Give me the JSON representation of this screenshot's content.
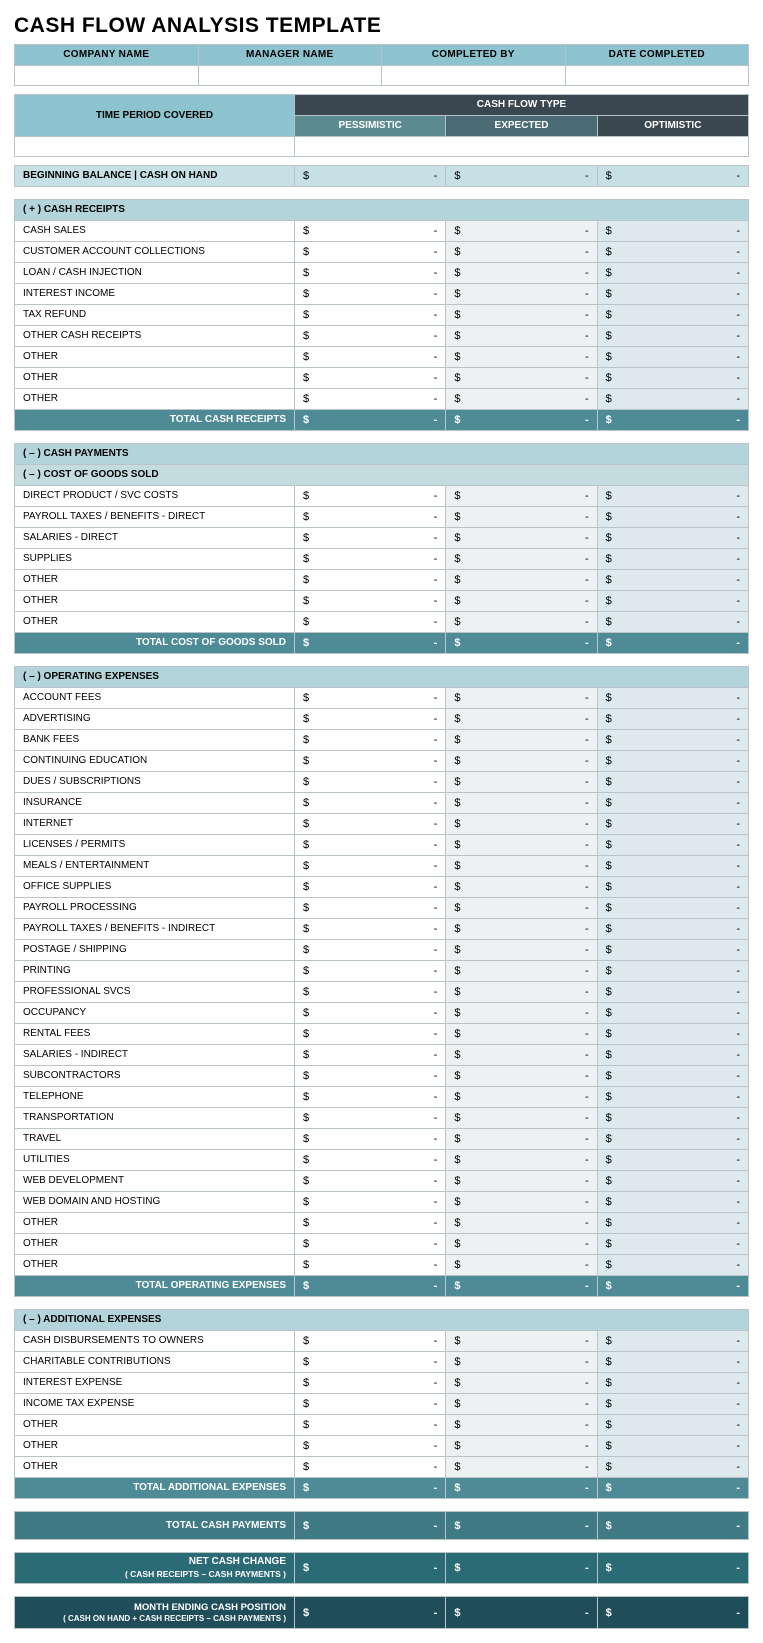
{
  "title": "CASH FLOW ANALYSIS TEMPLATE",
  "topHeaders": [
    "COMPANY NAME",
    "MANAGER NAME",
    "COMPLETED BY",
    "DATE COMPLETED"
  ],
  "timePeriodLabel": "TIME PERIOD COVERED",
  "cashFlowTypeLabel": "CASH FLOW TYPE",
  "scenarios": {
    "p": "PESSIMISTIC",
    "e": "EXPECTED",
    "o": "OPTIMISTIC"
  },
  "beginningLabel": "BEGINNING BALANCE  |  CASH ON HAND",
  "currencySymbol": "$",
  "dash": "-",
  "sections": {
    "receipts": {
      "header": "(  +  )   CASH RECEIPTS",
      "items": [
        "CASH SALES",
        "CUSTOMER ACCOUNT COLLECTIONS",
        "LOAN / CASH INJECTION",
        "INTEREST INCOME",
        "TAX REFUND",
        "OTHER CASH RECEIPTS",
        "OTHER",
        "OTHER",
        "OTHER"
      ],
      "total": "TOTAL CASH RECEIPTS"
    },
    "payments": {
      "header": "(  –  )   CASH PAYMENTS"
    },
    "cogs": {
      "header": "(  –  )   COST OF GOODS SOLD",
      "items": [
        "DIRECT PRODUCT / SVC COSTS",
        "PAYROLL TAXES / BENEFITS - DIRECT",
        "SALARIES - DIRECT",
        "SUPPLIES",
        "OTHER",
        "OTHER",
        "OTHER"
      ],
      "total": "TOTAL COST OF GOODS SOLD"
    },
    "opex": {
      "header": "(  –  )   OPERATING EXPENSES",
      "items": [
        "ACCOUNT FEES",
        "ADVERTISING",
        "BANK FEES",
        "CONTINUING EDUCATION",
        "DUES / SUBSCRIPTIONS",
        "INSURANCE",
        "INTERNET",
        "LICENSES / PERMITS",
        "MEALS / ENTERTAINMENT",
        "OFFICE SUPPLIES",
        "PAYROLL PROCESSING",
        "PAYROLL TAXES / BENEFITS - INDIRECT",
        "POSTAGE / SHIPPING",
        "PRINTING",
        "PROFESSIONAL SVCS",
        "OCCUPANCY",
        "RENTAL FEES",
        "SALARIES - INDIRECT",
        "SUBCONTRACTORS",
        "TELEPHONE",
        "TRANSPORTATION",
        "TRAVEL",
        "UTILITIES",
        "WEB DEVELOPMENT",
        "WEB DOMAIN AND HOSTING",
        "OTHER",
        "OTHER",
        "OTHER"
      ],
      "total": "TOTAL OPERATING EXPENSES"
    },
    "addl": {
      "header": "(  –  )   ADDITIONAL EXPENSES",
      "items": [
        "CASH DISBURSEMENTS TO OWNERS",
        "CHARITABLE CONTRIBUTIONS",
        "INTEREST EXPENSE",
        "INCOME TAX EXPENSE",
        "OTHER",
        "OTHER",
        "OTHER"
      ],
      "total": "TOTAL ADDITIONAL EXPENSES"
    }
  },
  "summaries": {
    "totalPayments": "TOTAL CASH PAYMENTS",
    "netChange": {
      "title": "NET CASH CHANGE",
      "sub": "( CASH RECEIPTS – CASH PAYMENTS )"
    },
    "ending": {
      "title": "MONTH ENDING CASH POSITION",
      "sub": "( CASH ON HAND + CASH RECEIPTS – CASH PAYMENTS )"
    }
  },
  "colors": {
    "hdrLight": "#8cc3ce",
    "sectionHdr": "#b3d4da",
    "subHdr": "#c4dce0",
    "total": "#4e8b96",
    "totalDark": "#3f7a85",
    "net": "#2a6b75",
    "final": "#1f4e5a",
    "scenarioP": "#5b8a8f",
    "scenarioE": "#4b6b74",
    "scenarioO": "#3b4750",
    "bgE": "#eef1f2",
    "bgO": "#dde9ec",
    "border": "#b8c4c8"
  }
}
